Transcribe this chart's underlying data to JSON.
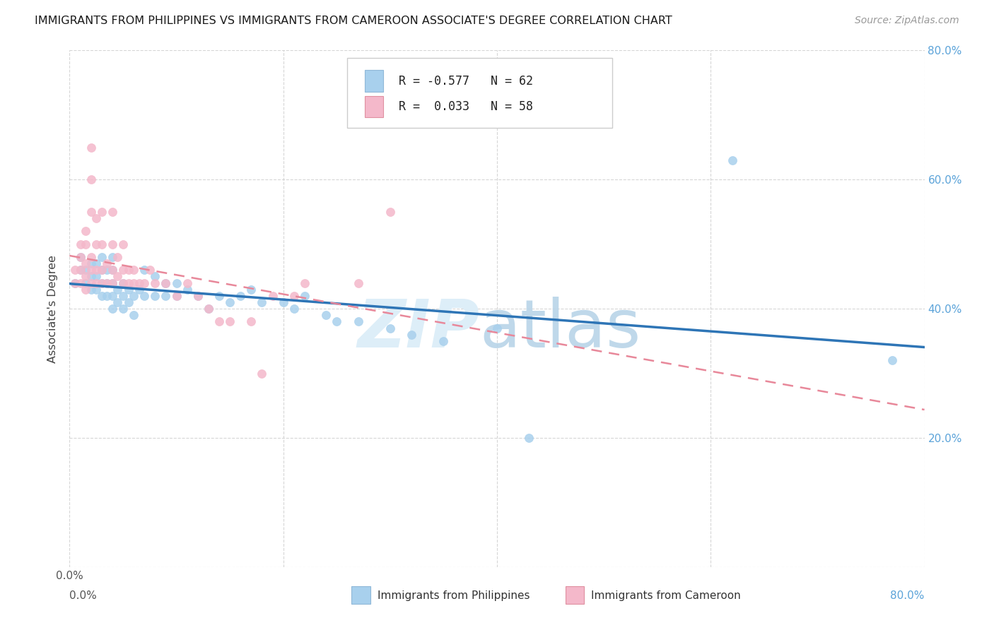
{
  "title": "IMMIGRANTS FROM PHILIPPINES VS IMMIGRANTS FROM CAMEROON ASSOCIATE'S DEGREE CORRELATION CHART",
  "source": "Source: ZipAtlas.com",
  "ylabel": "Associate's Degree",
  "xlim": [
    0.0,
    0.8
  ],
  "ylim": [
    0.0,
    0.8
  ],
  "legend_label1": "Immigrants from Philippines",
  "legend_label2": "Immigrants from Cameroon",
  "R1": "-0.577",
  "N1": "62",
  "R2": "0.033",
  "N2": "58",
  "color_blue": "#a8d0ed",
  "color_pink": "#f4b8ca",
  "line_blue": "#2e75b6",
  "line_pink": "#e8889a",
  "philippines_x": [
    0.005,
    0.01,
    0.01,
    0.015,
    0.015,
    0.02,
    0.02,
    0.02,
    0.025,
    0.025,
    0.025,
    0.03,
    0.03,
    0.03,
    0.03,
    0.035,
    0.035,
    0.035,
    0.04,
    0.04,
    0.04,
    0.04,
    0.04,
    0.045,
    0.045,
    0.05,
    0.05,
    0.05,
    0.055,
    0.055,
    0.06,
    0.06,
    0.065,
    0.07,
    0.07,
    0.08,
    0.08,
    0.09,
    0.09,
    0.1,
    0.1,
    0.11,
    0.12,
    0.13,
    0.14,
    0.15,
    0.16,
    0.17,
    0.18,
    0.2,
    0.21,
    0.22,
    0.24,
    0.25,
    0.27,
    0.3,
    0.32,
    0.35,
    0.4,
    0.43,
    0.62,
    0.77
  ],
  "philippines_y": [
    0.44,
    0.46,
    0.48,
    0.44,
    0.46,
    0.43,
    0.45,
    0.47,
    0.43,
    0.45,
    0.47,
    0.42,
    0.44,
    0.46,
    0.48,
    0.42,
    0.44,
    0.46,
    0.4,
    0.42,
    0.44,
    0.46,
    0.48,
    0.41,
    0.43,
    0.4,
    0.42,
    0.44,
    0.41,
    0.43,
    0.39,
    0.42,
    0.43,
    0.42,
    0.46,
    0.42,
    0.45,
    0.42,
    0.44,
    0.42,
    0.44,
    0.43,
    0.42,
    0.4,
    0.42,
    0.41,
    0.42,
    0.43,
    0.41,
    0.41,
    0.4,
    0.42,
    0.39,
    0.38,
    0.38,
    0.37,
    0.36,
    0.35,
    0.37,
    0.2,
    0.63,
    0.32
  ],
  "cameroon_x": [
    0.005,
    0.005,
    0.01,
    0.01,
    0.01,
    0.01,
    0.015,
    0.015,
    0.015,
    0.015,
    0.015,
    0.02,
    0.02,
    0.02,
    0.02,
    0.02,
    0.02,
    0.025,
    0.025,
    0.025,
    0.025,
    0.03,
    0.03,
    0.03,
    0.03,
    0.035,
    0.035,
    0.04,
    0.04,
    0.04,
    0.04,
    0.045,
    0.045,
    0.05,
    0.05,
    0.05,
    0.055,
    0.055,
    0.06,
    0.06,
    0.065,
    0.07,
    0.075,
    0.08,
    0.09,
    0.1,
    0.11,
    0.12,
    0.13,
    0.14,
    0.15,
    0.17,
    0.18,
    0.19,
    0.21,
    0.22,
    0.27,
    0.3
  ],
  "cameroon_y": [
    0.44,
    0.46,
    0.44,
    0.46,
    0.48,
    0.5,
    0.43,
    0.45,
    0.47,
    0.5,
    0.52,
    0.44,
    0.46,
    0.48,
    0.55,
    0.6,
    0.65,
    0.44,
    0.46,
    0.5,
    0.54,
    0.44,
    0.46,
    0.5,
    0.55,
    0.44,
    0.47,
    0.44,
    0.46,
    0.5,
    0.55,
    0.45,
    0.48,
    0.44,
    0.46,
    0.5,
    0.44,
    0.46,
    0.44,
    0.46,
    0.44,
    0.44,
    0.46,
    0.44,
    0.44,
    0.42,
    0.44,
    0.42,
    0.4,
    0.38,
    0.38,
    0.38,
    0.3,
    0.42,
    0.42,
    0.44,
    0.44,
    0.55
  ]
}
